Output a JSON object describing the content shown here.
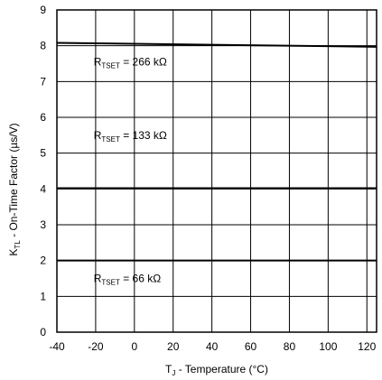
{
  "chart_data": {
    "type": "line",
    "xlabel": {
      "main": "T",
      "sub": "J",
      "rest": " - Temperature (°C)"
    },
    "ylabel": {
      "main": "K",
      "sub": "TL",
      "rest": " - On-Time Factor (µs/V)"
    },
    "xlim": [
      -40,
      125
    ],
    "ylim": [
      0,
      9
    ],
    "xticks": [
      -40,
      -20,
      0,
      20,
      40,
      60,
      80,
      100,
      120
    ],
    "yticks": [
      0,
      1,
      2,
      3,
      4,
      5,
      6,
      7,
      8,
      9
    ],
    "grid": true,
    "series": [
      {
        "name": "RTSET = 266 kΩ",
        "x": [
          -40,
          125
        ],
        "y": [
          8.08,
          7.97
        ]
      },
      {
        "name": "RTSET = 133 kΩ",
        "x": [
          -40,
          125
        ],
        "y": [
          4.02,
          4.02
        ]
      },
      {
        "name": "RTSET = 66 kΩ",
        "x": [
          -40,
          125
        ],
        "y": [
          2.0,
          2.0
        ]
      }
    ],
    "annotations": [
      {
        "main": "R",
        "sub": "TSET",
        "rest": " = 266 kΩ",
        "x": -21,
        "y": 7.55
      },
      {
        "main": "R",
        "sub": "TSET",
        "rest": " = 133 kΩ",
        "x": -21,
        "y": 5.5
      },
      {
        "main": "R",
        "sub": "TSET",
        "rest": " = 66 kΩ",
        "x": -21,
        "y": 1.5
      }
    ]
  }
}
